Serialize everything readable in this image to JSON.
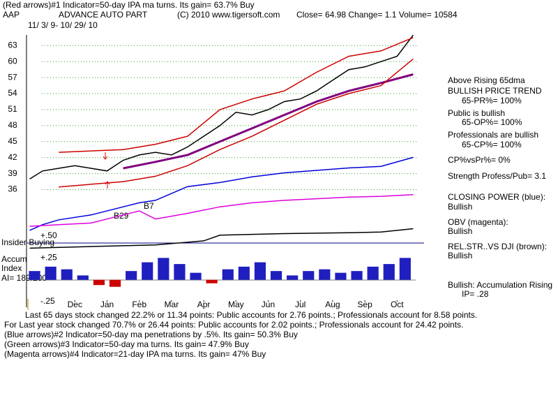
{
  "header": {
    "line1": "(Red arrows)#1 Indicator=50-day IPA ma turns. Its gain= 63.7% Buy",
    "symbol": "AAP",
    "name": "ADVANCE AUTO PART",
    "copyright": "(C) 2010 www.tigersoft.com",
    "quote": "Close=  64.98  Change= 1.1 Volume= 10584",
    "dates": "11/ 3/ 9- 10/ 29/ 10"
  },
  "side": [
    "Above Rising 65dma",
    "BULLISH PRICE TREND",
    "65-PR%= 100%",
    "Public is bullish",
    "65-OP%= 100%",
    "Professionals are bullish",
    "65-CP%= 100%",
    "CP%vsPr%=  0%",
    "Strength Profess/Pub= 3.1",
    "CLOSING POWER (blue):",
    "Bullish",
    "OBV (magenta):",
    "Bullish",
    "REL.STR..VS DJI (brown):",
    "Bullish",
    "Bullish: Accumulation Rising",
    "IP=  .28"
  ],
  "left": [
    "Insider Buying",
    "Accum",
    "Index",
    "AI= 189/200"
  ],
  "annotations": [
    "B29",
    "B7"
  ],
  "footer": [
    "Last 65 days stock changed  22.2% or  11.34 points:  Public accounts for  2.76 points.;  Professionals account for  8.58 points.",
    "For Last year stock changed  70.7% or  26.44 points:  Public accounts for  2.02 points.;  Professionals account for  24.42 points.",
    "(Blue arrows)#2 Indicator=50-day ma penetrations by .5%. Its gain= 50.3% Buy",
    "(Green arrows)#3 Indicator=50-day ma turns. Its gain= 47.9% Buy",
    "(Magenta arrows)#4 Indicator=21-day IPA ma turns. Its gain= 47% Buy"
  ],
  "chart_data": [
    {
      "type": "line",
      "xlim": [
        0,
        12.1
      ],
      "ylim": [
        34.5,
        65
      ],
      "yticks": [
        36,
        39,
        42,
        45,
        48,
        51,
        54,
        57,
        60,
        63
      ],
      "grid": true,
      "xticks": [
        {
          "value": 1.5,
          "label": "Dec"
        },
        {
          "value": 2.5,
          "label": "Jan"
        },
        {
          "value": 3.5,
          "label": "Feb"
        },
        {
          "value": 4.5,
          "label": "Mar"
        },
        {
          "value": 5.5,
          "label": "Apr"
        },
        {
          "value": 6.5,
          "label": "May"
        },
        {
          "value": 7.5,
          "label": "Jun"
        },
        {
          "value": 8.5,
          "label": "Jul"
        },
        {
          "value": 9.5,
          "label": "Aug"
        },
        {
          "value": 10.5,
          "label": "Sep"
        },
        {
          "value": 11.5,
          "label": "Oct"
        }
      ],
      "series": [
        {
          "color": "#000000",
          "x": [
            0.1,
            0.5,
            1,
            1.5,
            2,
            2.5,
            3,
            3.5,
            4,
            4.5,
            5,
            5.5,
            6,
            6.5,
            7,
            7.5,
            8,
            8.5,
            9,
            9.5,
            10,
            10.5,
            11,
            11.5,
            12
          ],
          "values": [
            38,
            39.5,
            40,
            40.5,
            40,
            39.5,
            41.5,
            42.5,
            43,
            42.5,
            44,
            46,
            48,
            50.5,
            50,
            51,
            52.5,
            53,
            54.5,
            56.5,
            58.5,
            59,
            60,
            61,
            64.98
          ]
        },
        {
          "color": "#800080",
          "x": [
            3,
            4,
            5,
            6,
            7,
            8,
            9,
            10,
            11,
            12
          ],
          "values": [
            40,
            41.2,
            42.5,
            45,
            47.5,
            50,
            52.5,
            54.5,
            56,
            57.6
          ]
        },
        {
          "color": "#cc0000",
          "x": [
            1,
            3,
            4,
            5,
            6,
            7,
            8,
            9,
            10,
            11,
            12
          ],
          "values": [
            43,
            43.5,
            44.5,
            46,
            51,
            53,
            54.5,
            58,
            61,
            62,
            64.5
          ]
        },
        {
          "color": "#cc0000",
          "x": [
            1,
            3,
            4,
            5,
            6,
            7,
            8,
            9,
            10,
            11,
            12
          ],
          "values": [
            36.5,
            37.5,
            38.5,
            40.5,
            43.5,
            46,
            49,
            52,
            54,
            55.5,
            60.5
          ]
        }
      ]
    },
    {
      "type": "line",
      "xlim": [
        0,
        12.1
      ],
      "ylim": [
        -25,
        100
      ],
      "series": [
        {
          "color": "#0000dd",
          "x": [
            0.1,
            0.5,
            1,
            2,
            3,
            3.5,
            4,
            5,
            6,
            7,
            8,
            9,
            10,
            11,
            12
          ],
          "values": [
            1,
            8,
            14,
            20,
            30,
            35,
            38,
            55,
            60,
            67,
            72,
            75,
            78,
            80,
            91
          ]
        },
        {
          "color": "#dd00dd",
          "x": [
            0.1,
            1,
            2,
            3,
            3.5,
            4,
            5,
            6,
            7,
            8,
            9,
            10,
            11,
            12
          ],
          "values": [
            6,
            8,
            10,
            20,
            25,
            15,
            22,
            30,
            35,
            38,
            40,
            42,
            43,
            45
          ]
        },
        {
          "color": "#000000",
          "x": [
            0.1,
            2,
            4,
            5.5,
            6,
            8,
            10,
            11,
            12
          ],
          "values": [
            -21,
            -19,
            -17,
            -12,
            -5,
            -3,
            -2,
            -1,
            3
          ]
        }
      ]
    },
    {
      "type": "bar",
      "xlim": [
        0,
        12.1
      ],
      "ylim": [
        -0.25,
        0.5
      ],
      "color": "#1f1fbf",
      "negative_color": "#cc0000",
      "yticks": [
        {
          "value": 0.5,
          "label": "+.50"
        },
        {
          "value": 0.25,
          "label": "+.25"
        },
        {
          "value": -0.25,
          "label": "-.25"
        }
      ],
      "x": [
        0.25,
        0.75,
        1.25,
        1.75,
        2.25,
        2.75,
        3.25,
        3.75,
        4.25,
        4.75,
        5.25,
        5.75,
        6.25,
        6.75,
        7.25,
        7.75,
        8.25,
        8.75,
        9.25,
        9.75,
        10.25,
        10.75,
        11.25,
        11.75
      ],
      "values": [
        0.1,
        0.15,
        0.12,
        0.05,
        -0.06,
        -0.08,
        0.1,
        0.2,
        0.25,
        0.18,
        0.08,
        -0.04,
        0.12,
        0.15,
        0.2,
        0.1,
        0.05,
        0.1,
        0.12,
        0.08,
        0.1,
        0.15,
        0.18,
        0.25
      ]
    }
  ]
}
